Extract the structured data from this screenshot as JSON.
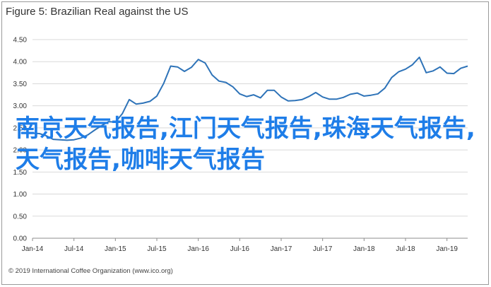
{
  "chart_data": {
    "type": "line",
    "title": "Figure 5: Brazilian Real against the US",
    "xlabel": "",
    "ylabel": "",
    "ylim": [
      0,
      4.5
    ],
    "yticks": [
      "0.00",
      "0.50",
      "1.00",
      "1.50",
      "2.00",
      "2.50",
      "3.00",
      "3.50",
      "4.00",
      "4.50"
    ],
    "xticks": [
      "Jan-14",
      "Jul-14",
      "Jan-15",
      "Jul-15",
      "Jan-16",
      "Jul-16",
      "Jan-17",
      "Jul-17",
      "Jan-18",
      "Jul-18",
      "Jan-19"
    ],
    "grid": "horizontal",
    "series": [
      {
        "color": "#2e73b8",
        "x": [
          "2014-01",
          "2014-02",
          "2014-03",
          "2014-04",
          "2014-05",
          "2014-06",
          "2014-07",
          "2014-08",
          "2014-09",
          "2014-10",
          "2014-11",
          "2014-12",
          "2015-01",
          "2015-02",
          "2015-03",
          "2015-04",
          "2015-05",
          "2015-06",
          "2015-07",
          "2015-08",
          "2015-09",
          "2015-10",
          "2015-11",
          "2015-12",
          "2016-01",
          "2016-02",
          "2016-03",
          "2016-04",
          "2016-05",
          "2016-06",
          "2016-07",
          "2016-08",
          "2016-09",
          "2016-10",
          "2016-11",
          "2016-12",
          "2017-01",
          "2017-02",
          "2017-03",
          "2017-04",
          "2017-05",
          "2017-06",
          "2017-07",
          "2017-08",
          "2017-09",
          "2017-10",
          "2017-11",
          "2017-12",
          "2018-01",
          "2018-02",
          "2018-03",
          "2018-04",
          "2018-05",
          "2018-06",
          "2018-07",
          "2018-08",
          "2018-09",
          "2018-10",
          "2018-11",
          "2018-12",
          "2019-01",
          "2019-02",
          "2019-03",
          "2019-04"
        ],
        "values": [
          2.38,
          2.37,
          2.32,
          2.24,
          2.23,
          2.22,
          2.23,
          2.27,
          2.34,
          2.45,
          2.55,
          2.64,
          2.63,
          2.82,
          3.14,
          3.04,
          3.06,
          3.1,
          3.22,
          3.51,
          3.9,
          3.88,
          3.78,
          3.87,
          4.05,
          3.97,
          3.7,
          3.56,
          3.53,
          3.43,
          3.27,
          3.21,
          3.25,
          3.18,
          3.35,
          3.35,
          3.2,
          3.11,
          3.12,
          3.14,
          3.21,
          3.3,
          3.2,
          3.15,
          3.15,
          3.19,
          3.26,
          3.29,
          3.22,
          3.24,
          3.27,
          3.4,
          3.64,
          3.77,
          3.83,
          3.93,
          4.1,
          3.75,
          3.79,
          3.88,
          3.74,
          3.73,
          3.85,
          3.9
        ]
      }
    ]
  },
  "overlay_text": "南京天气报告,江门天气报告,珠海天气报告,天气报告,咖啡天气报告",
  "footer": "© 2019 International Coffee Organization (www.ico.org)"
}
